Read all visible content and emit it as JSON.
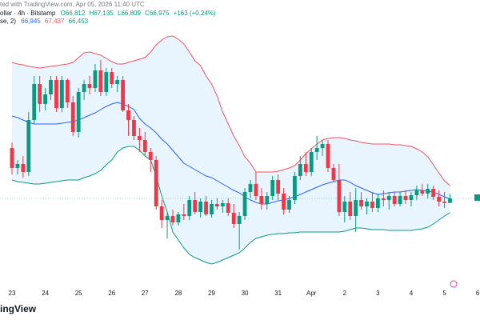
{
  "header": {
    "created": "ted with TradingView.com, Apr 05, 2026 11:40 UTC",
    "symbol": "ollar · 4h · Bitstamp",
    "ohlc": [
      "O66,812",
      "H67,135",
      "L66,809",
      "C66,975",
      "+163 (+0.24%)"
    ],
    "indicator": "se, 2)",
    "indicator_values": [
      "66,945",
      "67,437",
      "66,453"
    ],
    "logo": "ingView"
  },
  "chart_data": {
    "type": "candlestick",
    "categories": [
      "23",
      null,
      null,
      null,
      null,
      null,
      "24",
      null,
      null,
      null,
      null,
      null,
      "25",
      null,
      null,
      null,
      null,
      null,
      "26",
      null,
      null,
      null,
      null,
      null,
      "27",
      null,
      null,
      null,
      null,
      null,
      "28",
      null,
      null,
      null,
      null,
      null,
      "29",
      null,
      null,
      null,
      null,
      null,
      "30",
      null,
      null,
      null,
      null,
      null,
      "31",
      null,
      null,
      null,
      null,
      null,
      "Apr",
      null,
      null,
      null,
      null,
      null,
      "2",
      null,
      null,
      null,
      null,
      null,
      "3",
      null,
      null,
      null,
      null,
      null,
      "4",
      null,
      null,
      null,
      null,
      null,
      "5",
      null,
      null,
      null,
      null,
      null,
      "6"
    ],
    "open": [
      68801,
      68076,
      68221,
      67931,
      69816,
      71121,
      70396,
      70744,
      71266,
      70251,
      71266,
      70454,
      69381,
      70831,
      71121,
      70976,
      71614,
      70831,
      71556,
      71121,
      71266,
      70164,
      69816,
      69236,
      69091,
      68656,
      68366,
      66684,
      66191,
      66336,
      66104,
      66394,
      66336,
      66916,
      66481,
      66858,
      66394,
      66771,
      66684,
      66800,
      66452,
      66046,
      66336,
      67206,
      67496,
      67061,
      66771,
      67061,
      67641,
      67148,
      66568,
      66916,
      67786,
      68221,
      67931,
      68656,
      68801,
      68946,
      68076,
      67641,
      66481,
      66858,
      66336,
      66916,
      66684,
      66858,
      66626,
      66974,
      66916,
      67061,
      66771,
      67061,
      66916,
      67090,
      67264,
      67148,
      67322,
      67032,
      66858,
      66812,
      null,
      null,
      null,
      null,
      null
    ],
    "high": [
      69004,
      68366,
      68511,
      70106,
      71411,
      71411,
      70976,
      71411,
      71411,
      71411,
      71324,
      70686,
      70976,
      71266,
      71411,
      71846,
      71991,
      71701,
      71701,
      71411,
      71411,
      70396,
      69961,
      69526,
      69381,
      68801,
      68511,
      66916,
      66481,
      66568,
      66481,
      66771,
      67061,
      67206,
      66974,
      67061,
      66916,
      66974,
      66916,
      66974,
      66771,
      66481,
      67351,
      67641,
      67931,
      67351,
      67206,
      67786,
      67844,
      67351,
      67061,
      67931,
      68511,
      68656,
      68801,
      69236,
      69091,
      69091,
      68221,
      68221,
      67061,
      67206,
      67351,
      67206,
      66974,
      67206,
      67148,
      67264,
      67206,
      67206,
      67206,
      67264,
      67206,
      67438,
      67496,
      67496,
      67438,
      67264,
      67206,
      67135,
      null,
      null,
      null,
      null,
      null
    ],
    "low": [
      67844,
      67844,
      67728,
      67786,
      69671,
      70106,
      70164,
      70541,
      70106,
      70106,
      70251,
      69236,
      69178,
      70541,
      70744,
      70831,
      70686,
      70686,
      70976,
      70831,
      70106,
      69236,
      69091,
      68656,
      68511,
      67931,
      66568,
      65901,
      65524,
      65988,
      65988,
      66191,
      66191,
      66394,
      66278,
      66336,
      66278,
      66568,
      66452,
      66336,
      65901,
      65118,
      66191,
      66974,
      66916,
      66568,
      66568,
      66916,
      66916,
      66394,
      66452,
      66771,
      67641,
      67786,
      67786,
      68366,
      68511,
      67931,
      67554,
      66336,
      66104,
      66191,
      65756,
      66568,
      66394,
      66481,
      66481,
      66684,
      66568,
      66684,
      66684,
      66771,
      66684,
      66916,
      67061,
      66974,
      66916,
      66684,
      66626,
      66809,
      null,
      null,
      null,
      null,
      null
    ],
    "close": [
      68076,
      68221,
      67931,
      69816,
      71121,
      70396,
      70744,
      71266,
      70251,
      71266,
      70454,
      69381,
      70831,
      71121,
      70976,
      71614,
      70831,
      71556,
      71121,
      71266,
      70164,
      69816,
      69236,
      69091,
      68656,
      68366,
      66684,
      66191,
      66336,
      66104,
      66394,
      66336,
      66916,
      66481,
      66858,
      66394,
      66771,
      66684,
      66800,
      66452,
      66046,
      66336,
      67206,
      67496,
      67061,
      66771,
      67061,
      67641,
      67148,
      66568,
      66916,
      67786,
      68221,
      67931,
      68656,
      68801,
      68946,
      68076,
      67641,
      66481,
      66858,
      66336,
      66916,
      66684,
      66858,
      66626,
      66974,
      66916,
      67061,
      66771,
      67061,
      66916,
      67090,
      67264,
      67148,
      67322,
      67032,
      66858,
      66812,
      66975,
      null,
      null,
      null,
      null,
      null
    ],
    "up_color": "#089981",
    "down_color": "#f23645",
    "bands": {
      "upper": [
        71904,
        71846,
        71817,
        71759,
        71730,
        71701,
        71730,
        71759,
        71788,
        71817,
        71846,
        71904,
        72078,
        72252,
        72281,
        72223,
        72165,
        72049,
        71933,
        71846,
        71846,
        71904,
        71962,
        72020,
        72078,
        72281,
        72542,
        72716,
        72832,
        72861,
        72745,
        72571,
        72281,
        71962,
        71788,
        71411,
        71121,
        70686,
        70106,
        69671,
        69236,
        68888,
        68482,
        68250,
        67931,
        67931,
        67931,
        67931,
        67960,
        68018,
        68076,
        68163,
        68366,
        68598,
        68772,
        68946,
        69091,
        69149,
        69178,
        69178,
        69149,
        69091,
        69062,
        69004,
        68975,
        68946,
        68946,
        68946,
        68946,
        68917,
        68917,
        68888,
        68859,
        68772,
        68656,
        68482,
        68192,
        67902,
        67612,
        67437,
        null,
        null,
        null,
        null,
        null
      ],
      "middle": [
        69961,
        69903,
        69816,
        69729,
        69671,
        69671,
        69671,
        69671,
        69671,
        69700,
        69729,
        69758,
        69816,
        69903,
        69990,
        70077,
        70193,
        70309,
        70396,
        70454,
        70396,
        70309,
        70193,
        69874,
        69671,
        69526,
        69352,
        69120,
        68946,
        68714,
        68482,
        68250,
        68134,
        68018,
        67902,
        67786,
        67728,
        67612,
        67496,
        67380,
        67264,
        67177,
        67032,
        66916,
        66829,
        66771,
        66771,
        66829,
        66887,
        66916,
        66974,
        67032,
        67119,
        67206,
        67293,
        67380,
        67467,
        67525,
        67583,
        67641,
        67641,
        67554,
        67438,
        67351,
        67264,
        67177,
        67119,
        67148,
        67177,
        67206,
        67206,
        67235,
        67264,
        67293,
        67264,
        67235,
        67206,
        67119,
        67032,
        66945,
        null,
        null,
        null,
        null,
        null
      ],
      "lower": [
        67641,
        67583,
        67554,
        67525,
        67496,
        67496,
        67525,
        67554,
        67583,
        67612,
        67641,
        67641,
        67641,
        67728,
        67786,
        67873,
        67989,
        68192,
        68366,
        68656,
        68801,
        68859,
        68859,
        68714,
        68511,
        68366,
        67786,
        67061,
        66481,
        65756,
        65466,
        65176,
        64944,
        64828,
        64741,
        64654,
        64596,
        64654,
        64741,
        64828,
        64915,
        65002,
        65176,
        65379,
        65524,
        65582,
        65640,
        65669,
        65698,
        65698,
        65727,
        65727,
        65756,
        65756,
        65756,
        65756,
        65756,
        65756,
        65756,
        65756,
        65785,
        65843,
        65901,
        65901,
        65872,
        65843,
        65843,
        65843,
        65814,
        65814,
        65814,
        65814,
        65814,
        65843,
        65872,
        65930,
        66046,
        66191,
        66336,
        66453,
        null,
        null,
        null,
        null,
        null
      ],
      "upper_color": "#f7525f",
      "middle_color": "#2962ff",
      "lower_color": "#089981",
      "fill": "#2196f3"
    },
    "ylim": [
      64306,
      74166
    ]
  }
}
